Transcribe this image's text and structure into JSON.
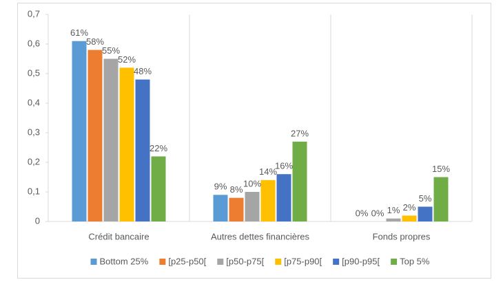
{
  "chart_data": {
    "type": "bar",
    "categories": [
      "Crédit bancaire",
      "Autres dettes financières",
      "Fonds propres"
    ],
    "series": [
      {
        "name": "Bottom 25%",
        "color": "#5b9bd5",
        "values": [
          0.61,
          0.09,
          0
        ],
        "value_labels": [
          "61%",
          "9%",
          "0%"
        ]
      },
      {
        "name": "[p25-p50[",
        "color": "#ed7d31",
        "values": [
          0.58,
          0.08,
          0
        ],
        "value_labels": [
          "58%",
          "8%",
          "0%"
        ]
      },
      {
        "name": "[p50-p75[",
        "color": "#a5a5a5",
        "values": [
          0.55,
          0.1,
          0.01
        ],
        "value_labels": [
          "55%",
          "10%",
          "1%"
        ]
      },
      {
        "name": "[p75-p90[",
        "color": "#ffc000",
        "values": [
          0.52,
          0.14,
          0.02
        ],
        "value_labels": [
          "52%",
          "14%",
          "2%"
        ]
      },
      {
        "name": "[p90-p95[",
        "color": "#4472c4",
        "values": [
          0.48,
          0.16,
          0.05
        ],
        "value_labels": [
          "48%",
          "16%",
          "5%"
        ]
      },
      {
        "name": "Top 5%",
        "color": "#70ad47",
        "values": [
          0.22,
          0.27,
          0.15
        ],
        "value_labels": [
          "22%",
          "27%",
          "15%"
        ]
      }
    ],
    "ylim": [
      0,
      0.7
    ],
    "yticks": [
      0,
      {
        "value": 0.1,
        "label": "0,1"
      },
      {
        "value": 0.2,
        "label": "0,2"
      },
      {
        "value": 0.3,
        "label": "0,3"
      },
      {
        "value": 0.4,
        "label": "0,4"
      },
      {
        "value": 0.5,
        "label": "0,5"
      },
      {
        "value": 0.6,
        "label": "0,6"
      },
      {
        "value": 0.7,
        "label": "0,7"
      }
    ],
    "legend": "bottom"
  }
}
